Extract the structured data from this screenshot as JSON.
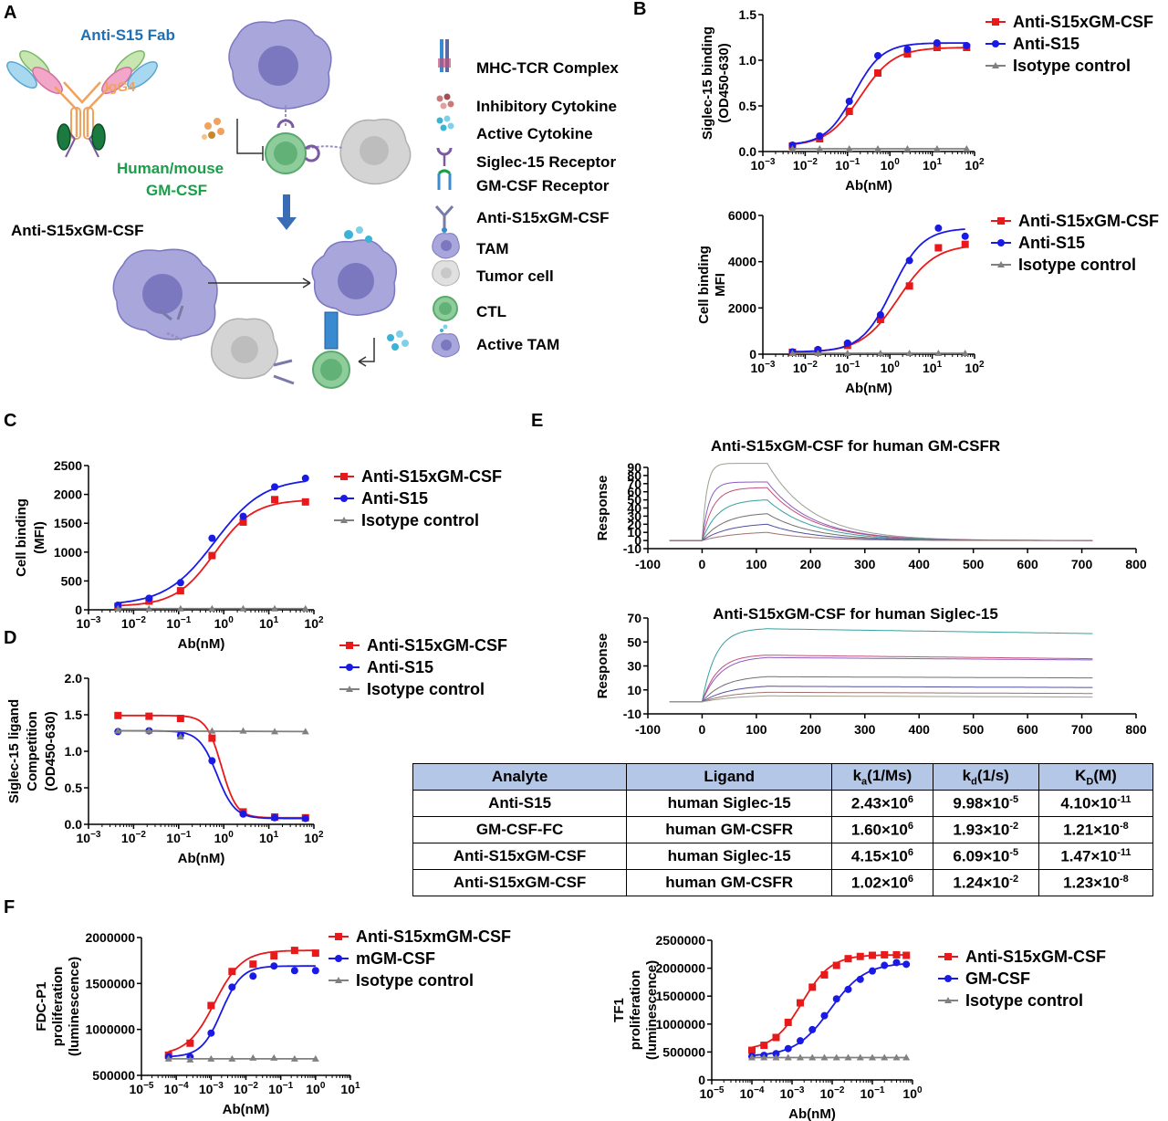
{
  "panel_labels": [
    "A",
    "B",
    "C",
    "D",
    "E",
    "F"
  ],
  "schematic": {
    "fab_label": "Anti-S15 Fab",
    "igg4_label": "IgG4",
    "gmcsf_label_1": "Human/mouse",
    "gmcsf_label_2": "GM-CSF",
    "construct_label": "Anti-S15xGM-CSF",
    "legend": [
      {
        "icon": "mhc-tcr-icon",
        "label": "MHC-TCR Complex"
      },
      {
        "icon": "inhibitory-cytokine-icon",
        "label": "Inhibitory Cytokine"
      },
      {
        "icon": "active-cytokine-icon",
        "label": "Active Cytokine"
      },
      {
        "icon": "siglec15-receptor-icon",
        "label": "Siglec-15 Receptor"
      },
      {
        "icon": "gmcsf-receptor-icon",
        "label": "GM-CSF Receptor"
      },
      {
        "icon": "antibody-icon",
        "label": "Anti-S15xGM-CSF"
      },
      {
        "icon": "tam-icon",
        "label": "TAM"
      },
      {
        "icon": "tumor-cell-icon",
        "label": "Tumor cell"
      },
      {
        "icon": "ctl-icon",
        "label": "CTL"
      },
      {
        "icon": "active-tam-icon",
        "label": "Active TAM"
      }
    ],
    "colors": {
      "tam": "#a9a6dc",
      "ctl": "#8fcc9c",
      "tumor": "#d4d4d4",
      "igg4": "#f0a35e",
      "fab_blue": "#1f6fb4",
      "gmcsf_green": "#1a9e4a"
    }
  },
  "chart_data": [
    {
      "id": "B1",
      "type": "scatter",
      "xlabel": "Ab(nM)",
      "ylabel": "Siglec-15 binding\n(OD450-630)",
      "xscale": "log",
      "xlim": [
        0.001,
        100
      ],
      "ylim": [
        0,
        1.5
      ],
      "yticks": [
        "0.0",
        "0.5",
        "1.0",
        "1.5"
      ],
      "xticks": [
        "10^-3",
        "10^-2",
        "10^-1",
        "10^0",
        "10^1",
        "10^2"
      ],
      "series": [
        {
          "name": "Anti-S15xGM-CSF",
          "color": "#e8191a",
          "marker": "square",
          "x": [
            0.005,
            0.022,
            0.11,
            0.52,
            2.6,
            13,
            65
          ],
          "y": [
            0.06,
            0.14,
            0.44,
            0.86,
            1.07,
            1.14,
            1.14
          ]
        },
        {
          "name": "Anti-S15",
          "color": "#1a1ae6",
          "marker": "circle",
          "x": [
            0.005,
            0.022,
            0.11,
            0.52,
            2.6,
            13,
            65
          ],
          "y": [
            0.07,
            0.17,
            0.55,
            1.05,
            1.12,
            1.19,
            1.16
          ]
        },
        {
          "name": "Isotype control",
          "color": "#808080",
          "marker": "triangle",
          "x": [
            0.005,
            0.022,
            0.11,
            0.52,
            2.6,
            13,
            65
          ],
          "y": [
            0.03,
            0.03,
            0.03,
            0.03,
            0.03,
            0.03,
            0.03
          ]
        }
      ]
    },
    {
      "id": "B2",
      "type": "scatter",
      "xlabel": "Ab(nM)",
      "ylabel": "Cell binding\nMFI",
      "xscale": "log",
      "xlim": [
        0.001,
        100
      ],
      "ylim": [
        0,
        6000
      ],
      "yticks": [
        "0",
        "2000",
        "4000",
        "6000"
      ],
      "xticks": [
        "10^-3",
        "10^-2",
        "10^-1",
        "10^0",
        "10^1",
        "10^2"
      ],
      "series": [
        {
          "name": "Anti-S15xGM-CSF",
          "color": "#e8191a",
          "marker": "square",
          "x": [
            0.005,
            0.02,
            0.1,
            0.6,
            2.9,
            14,
            60
          ],
          "y": [
            80,
            140,
            380,
            1500,
            2950,
            4600,
            4750
          ]
        },
        {
          "name": "Anti-S15",
          "color": "#1a1ae6",
          "marker": "circle",
          "x": [
            0.005,
            0.02,
            0.1,
            0.6,
            2.9,
            14,
            60
          ],
          "y": [
            100,
            200,
            480,
            1700,
            4050,
            5450,
            5100
          ]
        },
        {
          "name": "Isotype control",
          "color": "#808080",
          "marker": "triangle",
          "x": [
            0.005,
            0.02,
            0.1,
            0.6,
            2.9,
            14,
            60
          ],
          "y": [
            40,
            40,
            40,
            40,
            40,
            40,
            40
          ]
        }
      ]
    },
    {
      "id": "C",
      "type": "scatter",
      "xlabel": "Ab(nM)",
      "ylabel": "Cell binding\n(MFI)",
      "xscale": "log",
      "xlim": [
        0.001,
        100
      ],
      "ylim": [
        0,
        2500
      ],
      "yticks": [
        "0",
        "500",
        "1000",
        "1500",
        "2000",
        "2500"
      ],
      "xticks": [
        "10^-3",
        "10^-2",
        "10^-1",
        "10^0",
        "10^1",
        "10^2"
      ],
      "series": [
        {
          "name": "Anti-S15xGM-CSF",
          "color": "#e8191a",
          "marker": "square",
          "x": [
            0.0045,
            0.022,
            0.11,
            0.55,
            2.7,
            13.5,
            65
          ],
          "y": [
            60,
            150,
            330,
            940,
            1520,
            1910,
            1870
          ]
        },
        {
          "name": "Anti-S15",
          "color": "#1a1ae6",
          "marker": "circle",
          "x": [
            0.0045,
            0.022,
            0.11,
            0.55,
            2.7,
            13.5,
            65
          ],
          "y": [
            80,
            200,
            470,
            1240,
            1620,
            2130,
            2280
          ]
        },
        {
          "name": "Isotype control",
          "color": "#808080",
          "marker": "triangle",
          "x": [
            0.0045,
            0.022,
            0.11,
            0.55,
            2.7,
            13.5,
            65
          ],
          "y": [
            20,
            20,
            20,
            20,
            20,
            20,
            20
          ]
        }
      ]
    },
    {
      "id": "D",
      "type": "scatter",
      "xlabel": "Ab(nM)",
      "ylabel": "Siglec-15 ligand\nCompetition\n(OD450-630)",
      "xscale": "log",
      "xlim": [
        0.001,
        100
      ],
      "ylim": [
        0,
        2.0
      ],
      "yticks": [
        "0.0",
        "0.5",
        "1.0",
        "1.5",
        "2.0"
      ],
      "xticks": [
        "10^-3",
        "10^-2",
        "10^-1",
        "10^0",
        "10^1",
        "10^2"
      ],
      "series": [
        {
          "name": "Anti-S15xGM-CSF",
          "color": "#e8191a",
          "marker": "square",
          "x": [
            0.0045,
            0.022,
            0.11,
            0.55,
            2.7,
            13.5,
            65
          ],
          "y": [
            1.49,
            1.48,
            1.45,
            1.18,
            0.17,
            0.1,
            0.09
          ]
        },
        {
          "name": "Anti-S15",
          "color": "#1a1ae6",
          "marker": "circle",
          "x": [
            0.0045,
            0.022,
            0.11,
            0.55,
            2.7,
            13.5,
            65
          ],
          "y": [
            1.27,
            1.28,
            1.22,
            0.87,
            0.14,
            0.09,
            0.08
          ]
        },
        {
          "name": "Isotype control",
          "color": "#808080",
          "marker": "triangle",
          "x": [
            0.0045,
            0.022,
            0.11,
            0.55,
            2.7,
            13.5,
            65
          ],
          "y": [
            1.28,
            1.28,
            1.2,
            1.28,
            1.28,
            1.27,
            1.27
          ]
        }
      ]
    },
    {
      "id": "E1",
      "type": "line",
      "title": "Anti-S15xGM-CSF for human GM-CSFR",
      "ylabel": "Response",
      "xlim": [
        -100,
        800
      ],
      "ylim": [
        -10,
        90
      ],
      "xticks": [
        "-100",
        "0",
        "100",
        "200",
        "300",
        "400",
        "500",
        "600",
        "700",
        "800"
      ],
      "yticks": [
        "-10",
        "0",
        "10",
        "20",
        "30",
        "40",
        "50",
        "60",
        "70",
        "80",
        "90"
      ],
      "assoc_end": 120,
      "dissoc_end": 720,
      "curves": [
        {
          "color": "#9aa08f",
          "plateau": 95,
          "kon": 0.12
        },
        {
          "color": "#8a5bc0",
          "plateau": 72,
          "kon": 0.08
        },
        {
          "color": "#c0507a",
          "plateau": 65,
          "kon": 0.05
        },
        {
          "color": "#35a0a0",
          "plateau": 50,
          "kon": 0.035
        },
        {
          "color": "#707070",
          "plateau": 33,
          "kon": 0.025
        },
        {
          "color": "#5050a0",
          "plateau": 20,
          "kon": 0.02
        },
        {
          "color": "#a07070",
          "plateau": 10,
          "kon": 0.015
        }
      ]
    },
    {
      "id": "E2",
      "type": "line",
      "title": "Anti-S15xGM-CSF for human Siglec-15",
      "ylabel": "Response",
      "xlim": [
        -100,
        800
      ],
      "ylim": [
        -10,
        70
      ],
      "xticks": [
        "-100",
        "0",
        "100",
        "200",
        "300",
        "400",
        "500",
        "600",
        "700",
        "800"
      ],
      "yticks": [
        "-10",
        "10",
        "30",
        "50",
        "70"
      ],
      "assoc_end": 120,
      "dissoc_end": 720,
      "curves": [
        {
          "color": "#35a0a0",
          "plateau": 61,
          "kon": 0.04,
          "final": 57
        },
        {
          "color": "#c0507a",
          "plateau": 39,
          "kon": 0.035,
          "final": 36
        },
        {
          "color": "#8a5bc0",
          "plateau": 37,
          "kon": 0.03,
          "final": 35
        },
        {
          "color": "#707070",
          "plateau": 21,
          "kon": 0.025,
          "final": 20
        },
        {
          "color": "#5050a0",
          "plateau": 13,
          "kon": 0.02,
          "final": 12
        },
        {
          "color": "#a07070",
          "plateau": 8,
          "kon": 0.018,
          "final": 7
        },
        {
          "color": "#9aa08f",
          "plateau": 5,
          "kon": 0.015,
          "final": 4
        }
      ]
    },
    {
      "id": "F1",
      "type": "scatter",
      "xlabel": "Ab(nM)",
      "ylabel": "FDC-P1\nproliferation\n(luminescence)",
      "xscale": "log",
      "xlim": [
        1e-05,
        10
      ],
      "ylim": [
        500000,
        2000000
      ],
      "yticks": [
        "500000",
        "1000000",
        "1500000",
        "2000000"
      ],
      "xticks": [
        "10^-5",
        "10^-4",
        "10^-3",
        "10^-2",
        "10^-1",
        "10^0",
        "10^1"
      ],
      "series": [
        {
          "name": "Anti-S15xmGM-CSF",
          "color": "#e8191a",
          "marker": "square",
          "x": [
            6e-05,
            0.00025,
            0.001,
            0.004,
            0.016,
            0.064,
            0.25,
            1
          ],
          "y": [
            720000,
            850000,
            1260000,
            1630000,
            1710000,
            1800000,
            1860000,
            1830000
          ]
        },
        {
          "name": "mGM-CSF",
          "color": "#1a1ae6",
          "marker": "circle",
          "x": [
            6e-05,
            0.00025,
            0.001,
            0.004,
            0.016,
            0.064,
            0.25,
            1
          ],
          "y": [
            700000,
            700000,
            960000,
            1460000,
            1580000,
            1690000,
            1640000,
            1640000
          ]
        },
        {
          "name": "Isotype control",
          "color": "#808080",
          "marker": "triangle",
          "x": [
            6e-05,
            0.00025,
            0.001,
            0.004,
            0.016,
            0.064,
            0.25,
            1
          ],
          "y": [
            680000,
            670000,
            680000,
            680000,
            690000,
            690000,
            680000,
            680000
          ]
        }
      ]
    },
    {
      "id": "F2",
      "type": "scatter",
      "xlabel": "Ab(nM)",
      "ylabel": "TF1\nproliferation\n(luminescence)",
      "xscale": "log",
      "xlim": [
        1e-05,
        1
      ],
      "ylim": [
        0,
        2500000
      ],
      "yticks": [
        "0",
        "500000",
        "1000000",
        "1500000",
        "2000000",
        "2500000"
      ],
      "xticks": [
        "10^-5",
        "10^-4",
        "10^-3",
        "10^-2",
        "10^-1",
        "10^0"
      ],
      "series": [
        {
          "name": "Anti-S15xGM-CSF",
          "color": "#e8191a",
          "marker": "square",
          "x": [
            0.0001,
            0.0002,
            0.0004,
            0.0008,
            0.0016,
            0.0032,
            0.0064,
            0.0128,
            0.025,
            0.05,
            0.1,
            0.2,
            0.4,
            0.7
          ],
          "y": [
            530000,
            620000,
            760000,
            1030000,
            1380000,
            1660000,
            1880000,
            2050000,
            2170000,
            2210000,
            2230000,
            2240000,
            2240000,
            2230000
          ]
        },
        {
          "name": "GM-CSF",
          "color": "#1a1ae6",
          "marker": "circle",
          "x": [
            0.0001,
            0.0002,
            0.0004,
            0.0008,
            0.0016,
            0.0032,
            0.0064,
            0.0128,
            0.025,
            0.05,
            0.1,
            0.2,
            0.4,
            0.7
          ],
          "y": [
            420000,
            440000,
            470000,
            560000,
            700000,
            900000,
            1150000,
            1450000,
            1620000,
            1800000,
            1950000,
            2050000,
            2100000,
            2070000
          ]
        },
        {
          "name": "Isotype control",
          "color": "#808080",
          "marker": "triangle",
          "x": [
            0.0001,
            0.0002,
            0.0004,
            0.0008,
            0.0016,
            0.0032,
            0.0064,
            0.0128,
            0.025,
            0.05,
            0.1,
            0.2,
            0.4,
            0.7
          ],
          "y": [
            400000,
            400000,
            400000,
            400000,
            400000,
            400000,
            400000,
            400000,
            400000,
            400000,
            400000,
            400000,
            400000,
            400000
          ]
        }
      ]
    }
  ],
  "kinetics_table": {
    "headers": [
      "Analyte",
      "Ligand",
      "ka(1/Ms)",
      "kd(1/s)",
      "KD(M)"
    ],
    "rows": [
      [
        "Anti-S15",
        "human Siglec-15",
        "2.43×10^6",
        "9.98×10^-5",
        "4.10×10^-11"
      ],
      [
        "GM-CSF-FC",
        "human GM-CSFR",
        "1.60×10^6",
        "1.93×10^-2",
        "1.21×10^-8"
      ],
      [
        "Anti-S15xGM-CSF",
        "human Siglec-15",
        "4.15×10^6",
        "6.09×10^-5",
        "1.47×10^-11"
      ],
      [
        "Anti-S15xGM-CSF",
        "human GM-CSFR",
        "1.02×10^6",
        "1.24×10^-2",
        "1.23×10^-8"
      ]
    ]
  }
}
